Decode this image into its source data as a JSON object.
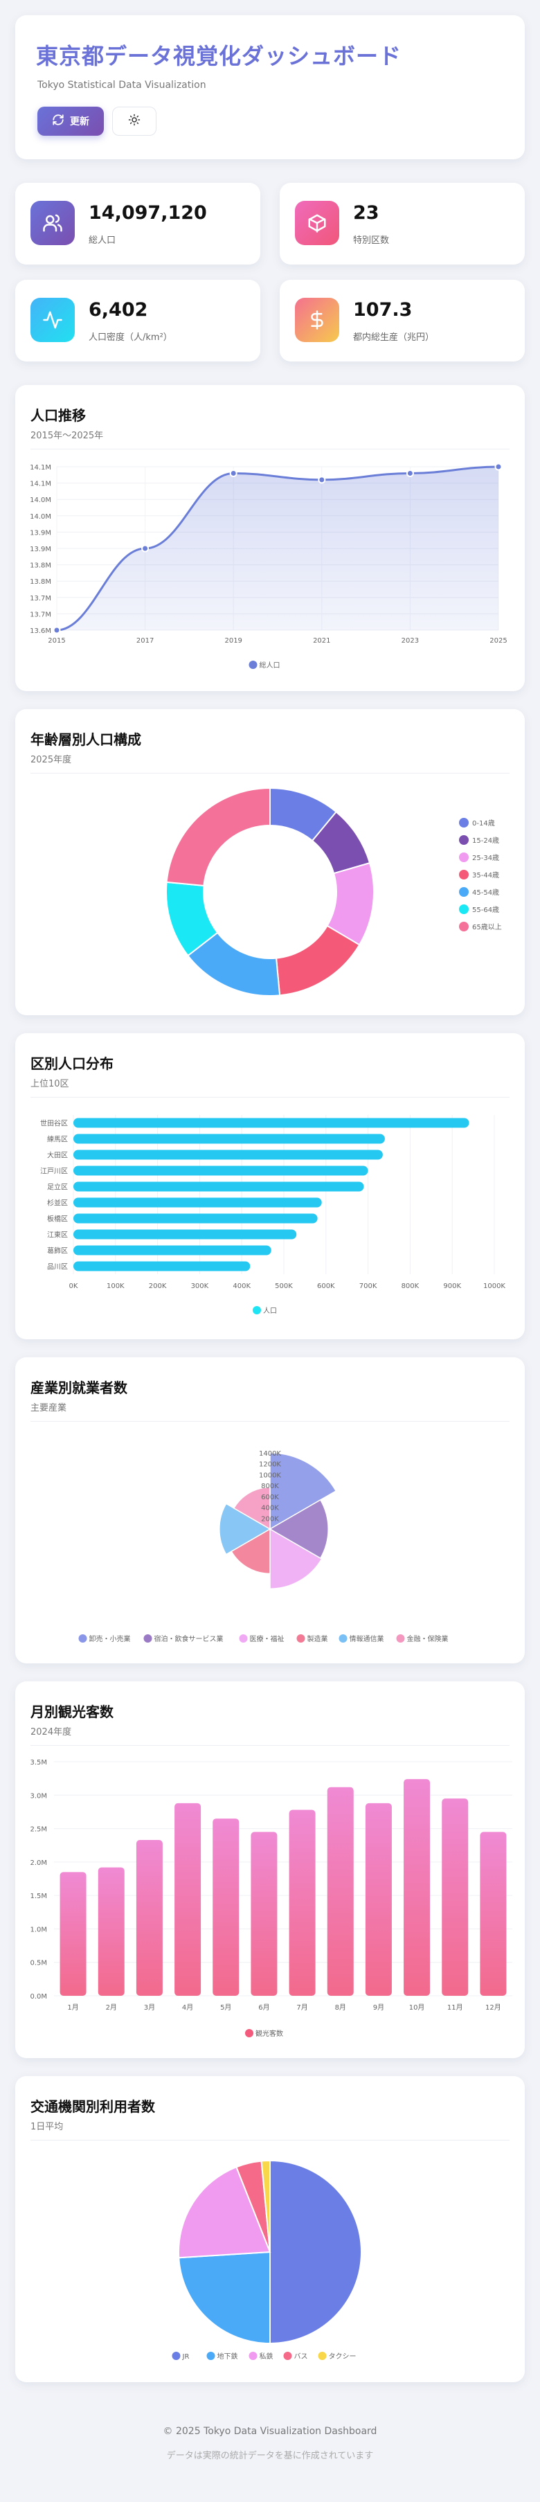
{
  "header": {
    "title": "東京都データ視覚化ダッシュボード",
    "subtitle": "Tokyo Statistical Data Visualization",
    "refresh_label": "更新"
  },
  "stats": [
    {
      "value": "14,097,120",
      "label": "総人口",
      "icon": "users-icon",
      "gradient": [
        "#6a72d8",
        "#7a4fb0"
      ]
    },
    {
      "value": "23",
      "label": "特別区数",
      "icon": "cube-icon",
      "gradient": [
        "#f06bbb",
        "#f0577a"
      ]
    },
    {
      "value": "6,402",
      "label": "人口密度（人/km²）",
      "icon": "activity-icon",
      "gradient": [
        "#43b4f8",
        "#22e0f0"
      ]
    },
    {
      "value": "107.3",
      "label": "都内総生産（兆円）",
      "icon": "dollar-icon",
      "gradient": [
        "#f4718f",
        "#f6c94e"
      ]
    }
  ],
  "sections": {
    "population": {
      "title": "人口推移",
      "subtitle": "2015年〜2025年"
    },
    "age": {
      "title": "年齢層別人口構成",
      "subtitle": "2025年度"
    },
    "ward": {
      "title": "区別人口分布",
      "subtitle": "上位10区"
    },
    "industry": {
      "title": "産業別就業者数",
      "subtitle": "主要産業"
    },
    "tourism": {
      "title": "月別観光客数",
      "subtitle": "2024年度"
    },
    "transport": {
      "title": "交通機関別利用者数",
      "subtitle": "1日平均"
    }
  },
  "chart_data": [
    {
      "id": "population",
      "type": "line",
      "x": [
        "2015",
        "2017",
        "2019",
        "2021",
        "2023",
        "2025"
      ],
      "series": [
        {
          "name": "総人口",
          "values": [
            13.6,
            13.85,
            14.08,
            14.06,
            14.08,
            14.1
          ],
          "color": "#6a7ed8"
        }
      ],
      "y_ticks": [
        "13.6M",
        "13.7M",
        "13.7M",
        "13.8M",
        "13.8M",
        "13.9M",
        "13.9M",
        "14.0M",
        "14.0M",
        "14.1M",
        "14.1M"
      ],
      "ylim": [
        13.6,
        14.1
      ],
      "grid": true,
      "legend": "bottom"
    },
    {
      "id": "age",
      "type": "pie",
      "labels": [
        "0-14歳",
        "15-24歳",
        "25-34歳",
        "35-44歳",
        "45-54歳",
        "55-64歳",
        "65歳以上"
      ],
      "values": [
        11,
        9.5,
        13,
        15,
        16,
        12,
        23.5
      ],
      "colors": [
        "#6a7ee6",
        "#7a4fb0",
        "#f09af0",
        "#f45a78",
        "#4aaaf8",
        "#1ae8f4",
        "#f4729a"
      ],
      "legend": "right"
    },
    {
      "id": "ward",
      "type": "bar",
      "orientation": "horizontal",
      "categories": [
        "世田谷区",
        "練馬区",
        "大田区",
        "江戸川区",
        "足立区",
        "杉並区",
        "板橋区",
        "江東区",
        "葛飾区",
        "品川区"
      ],
      "series": [
        {
          "name": "人口",
          "values": [
            940000,
            740000,
            735000,
            700000,
            690000,
            590000,
            580000,
            530000,
            470000,
            420000
          ],
          "color": "#24c8f0"
        }
      ],
      "x_ticks": [
        "0K",
        "100K",
        "200K",
        "300K",
        "400K",
        "500K",
        "600K",
        "700K",
        "800K",
        "900K",
        "1000K"
      ],
      "xlim": [
        0,
        1000000
      ],
      "grid": true,
      "legend": "bottom"
    },
    {
      "id": "industry",
      "type": "polar-area",
      "labels": [
        "卸売・小売業",
        "宿泊・飲食サービス業",
        "医療・福祉",
        "製造業",
        "情報通信業",
        "金融・保険業"
      ],
      "values": [
        1400000,
        820000,
        860000,
        480000,
        620000,
        420000
      ],
      "colors": [
        "#8a96e8",
        "#9a7ac4",
        "#f0aaf4",
        "#f27a94",
        "#7ac0f4",
        "#f498c0"
      ],
      "r_ticks": [
        "0",
        "200K",
        "400K",
        "600K",
        "800K",
        "1000K",
        "1200K",
        "1400K"
      ],
      "legend": "bottom"
    },
    {
      "id": "tourism",
      "type": "bar",
      "categories": [
        "1月",
        "2月",
        "3月",
        "4月",
        "5月",
        "6月",
        "7月",
        "8月",
        "9月",
        "10月",
        "11月",
        "12月"
      ],
      "series": [
        {
          "name": "観光客数",
          "values": [
            1.85,
            1.92,
            2.33,
            2.88,
            2.65,
            2.45,
            2.78,
            3.12,
            2.88,
            3.24,
            2.95,
            2.45
          ],
          "color": "#f06a90"
        }
      ],
      "y_ticks": [
        "0.0M",
        "0.5M",
        "1.0M",
        "1.5M",
        "2.0M",
        "2.5M",
        "3.0M",
        "3.5M"
      ],
      "ylim": [
        0,
        3.5
      ],
      "grid": true,
      "legend": "bottom"
    },
    {
      "id": "transport",
      "type": "pie",
      "labels": [
        "JR",
        "地下鉄",
        "私鉄",
        "バス",
        "タクシー"
      ],
      "values": [
        50,
        24,
        20,
        4.5,
        1.5
      ],
      "colors": [
        "#6a7ee6",
        "#4aaaf8",
        "#f09af0",
        "#f46a88",
        "#f8d84a"
      ],
      "legend": "bottom"
    }
  ],
  "footer": {
    "copyright": "© 2025 Tokyo Data Visualization Dashboard",
    "note": "データは実際の統計データを基に作成されています"
  }
}
